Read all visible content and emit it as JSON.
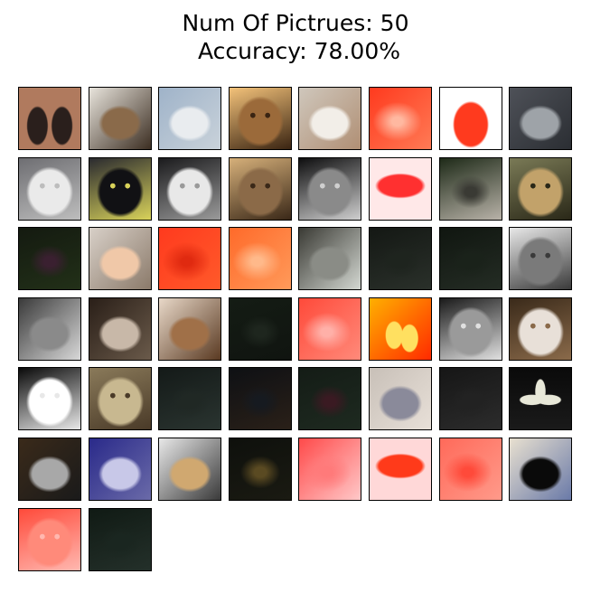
{
  "title": {
    "line1": "Num Of Pictrues: 50",
    "line2": " Accuracy: 78.00%"
  },
  "pictures": [
    {
      "subject": "cat",
      "colors": [
        "#b07a5e",
        "#2a1f1c",
        "#f2efe8"
      ],
      "style": "pair"
    },
    {
      "subject": "cat",
      "colors": [
        "#e8e4dc",
        "#8a6a4a",
        "#3c2e22"
      ],
      "style": "center"
    },
    {
      "subject": "cat",
      "colors": [
        "#9fb3c9",
        "#e9ecef",
        "#c9d2da"
      ],
      "style": "center"
    },
    {
      "subject": "cat",
      "colors": [
        "#f3c27a",
        "#9b6a3a",
        "#3a2412"
      ],
      "style": "face"
    },
    {
      "subject": "cat",
      "colors": [
        "#cfc7bc",
        "#f2eee8",
        "#b08f74"
      ],
      "style": "center"
    },
    {
      "subject": "butterfly",
      "colors": [
        "#ff3a1e",
        "#ff7a55",
        "#ffb8a0"
      ],
      "style": "red"
    },
    {
      "subject": "cat",
      "colors": [
        "#ffffff",
        "#ff3a1e",
        "#ff5a3a"
      ],
      "style": "redshape"
    },
    {
      "subject": "cat",
      "colors": [
        "#4e5158",
        "#9ea3a8",
        "#2b2e33"
      ],
      "style": "center"
    },
    {
      "subject": "cat",
      "colors": [
        "#6e6e72",
        "#eaeaea",
        "#bdbdbd"
      ],
      "style": "face"
    },
    {
      "subject": "cat",
      "colors": [
        "#2a2a2f",
        "#111114",
        "#d8d25a"
      ],
      "style": "face"
    },
    {
      "subject": "cat",
      "colors": [
        "#1b1b1d",
        "#e8e8e8",
        "#9a9a9a"
      ],
      "style": "face"
    },
    {
      "subject": "cat",
      "colors": [
        "#d6b07a",
        "#8b6a48",
        "#3a2818"
      ],
      "style": "face"
    },
    {
      "subject": "cat",
      "colors": [
        "#0e0e0f",
        "#8a8a8a",
        "#cfcfcf"
      ],
      "style": "face"
    },
    {
      "subject": "butterfly",
      "colors": [
        "#ffe8e8",
        "#ff3030",
        "#ff6a6a"
      ],
      "style": "wing"
    },
    {
      "subject": "sign",
      "colors": [
        "#1e2a18",
        "#3a3a34",
        "#b8b2a8"
      ],
      "style": "dark"
    },
    {
      "subject": "cat",
      "colors": [
        "#7a7a56",
        "#c2a26a",
        "#2a2818"
      ],
      "style": "face"
    },
    {
      "subject": "flower",
      "colors": [
        "#141a10",
        "#3a2030",
        "#223018"
      ],
      "style": "dark"
    },
    {
      "subject": "cat",
      "colors": [
        "#d8d0c8",
        "#f0c8a8",
        "#8b7a6a"
      ],
      "style": "center"
    },
    {
      "subject": "cat",
      "colors": [
        "#ff3a1e",
        "#ff5a2a",
        "#e02a10"
      ],
      "style": "red"
    },
    {
      "subject": "cat",
      "colors": [
        "#ff6a2a",
        "#ff9a5a",
        "#ffb98a"
      ],
      "style": "red"
    },
    {
      "subject": "cat",
      "colors": [
        "#3a3a34",
        "#8a8c86",
        "#d4d8d2"
      ],
      "style": "center"
    },
    {
      "subject": "scene",
      "colors": [
        "#141814",
        "#1e241e",
        "#2a302a"
      ],
      "style": "dark"
    },
    {
      "subject": "scene",
      "colors": [
        "#101610",
        "#1a221a",
        "#242c24"
      ],
      "style": "dark"
    },
    {
      "subject": "cat",
      "colors": [
        "#e8e8e8",
        "#7a7a7a",
        "#3a3a3a"
      ],
      "style": "face"
    },
    {
      "subject": "cat",
      "colors": [
        "#3a3a3a",
        "#8a8a8a",
        "#d8d8d8"
      ],
      "style": "center"
    },
    {
      "subject": "cat",
      "colors": [
        "#2a1f18",
        "#c8b8a8",
        "#6a5a4a"
      ],
      "style": "center"
    },
    {
      "subject": "cat",
      "colors": [
        "#e8d8c8",
        "#a07048",
        "#5a3a22"
      ],
      "style": "center"
    },
    {
      "subject": "scene",
      "colors": [
        "#141c14",
        "#1e261e",
        "#101410"
      ],
      "style": "dark"
    },
    {
      "subject": "cat",
      "colors": [
        "#ff4a3a",
        "#ff8a7a",
        "#ffb0a8"
      ],
      "style": "red"
    },
    {
      "subject": "birds",
      "colors": [
        "#ffb000",
        "#ff2a00",
        "#ffe060"
      ],
      "style": "birds"
    },
    {
      "subject": "cat",
      "colors": [
        "#1a1a1a",
        "#9a9a9a",
        "#e0e0e0"
      ],
      "style": "face"
    },
    {
      "subject": "cat",
      "colors": [
        "#3a2a1a",
        "#e8e0d8",
        "#8a6a4a"
      ],
      "style": "face"
    },
    {
      "subject": "cat",
      "colors": [
        "#0a0a0a",
        "#ffffff",
        "#e8e8e8"
      ],
      "style": "face"
    },
    {
      "subject": "cat",
      "colors": [
        "#8a7a5a",
        "#c8b890",
        "#4a3a28"
      ],
      "style": "face"
    },
    {
      "subject": "scene",
      "colors": [
        "#141a18",
        "#202824",
        "#2a3430"
      ],
      "style": "dark"
    },
    {
      "subject": "scene",
      "colors": [
        "#0e1014",
        "#161a20",
        "#2a2018"
      ],
      "style": "dark"
    },
    {
      "subject": "flower",
      "colors": [
        "#141c16",
        "#3a1a22",
        "#1e2a20"
      ],
      "style": "dark"
    },
    {
      "subject": "cat",
      "colors": [
        "#c8c0b8",
        "#8a8a9a",
        "#e8e0d8"
      ],
      "style": "center"
    },
    {
      "subject": "scene",
      "colors": [
        "#161616",
        "#222222",
        "#2c2c2c"
      ],
      "style": "dark"
    },
    {
      "subject": "flower",
      "colors": [
        "#0a0a0a",
        "#e8e8d8",
        "#1a1a1a"
      ],
      "style": "flower"
    },
    {
      "subject": "cat",
      "colors": [
        "#3a2a1a",
        "#a8a8a8",
        "#1a1a1a"
      ],
      "style": "center"
    },
    {
      "subject": "cat",
      "colors": [
        "#2a2a8a",
        "#c8c8e8",
        "#6a6aa8"
      ],
      "style": "center"
    },
    {
      "subject": "cat",
      "colors": [
        "#e8e8e8",
        "#d0a870",
        "#3a3a3a"
      ],
      "style": "center"
    },
    {
      "subject": "flower",
      "colors": [
        "#0e100c",
        "#5a4a22",
        "#1a1a12"
      ],
      "style": "dark"
    },
    {
      "subject": "scene",
      "colors": [
        "#ff4a4a",
        "#ffc8c8",
        "#ff7a7a"
      ],
      "style": "red"
    },
    {
      "subject": "umbrella",
      "colors": [
        "#ffd8d8",
        "#ff3a1a",
        "#ff8a6a"
      ],
      "style": "wing"
    },
    {
      "subject": "cat",
      "colors": [
        "#ff6a5a",
        "#ff9a8a",
        "#ff4a3a"
      ],
      "style": "red"
    },
    {
      "subject": "cat",
      "colors": [
        "#e8e0d0",
        "#0a0a0a",
        "#6a7aa8"
      ],
      "style": "center"
    },
    {
      "subject": "cat",
      "colors": [
        "#ff4a3a",
        "#ff8a7a",
        "#ffb8b0"
      ],
      "style": "face"
    },
    {
      "subject": "scene",
      "colors": [
        "#101a14",
        "#1a2620",
        "#24302a"
      ],
      "style": "dark"
    }
  ]
}
